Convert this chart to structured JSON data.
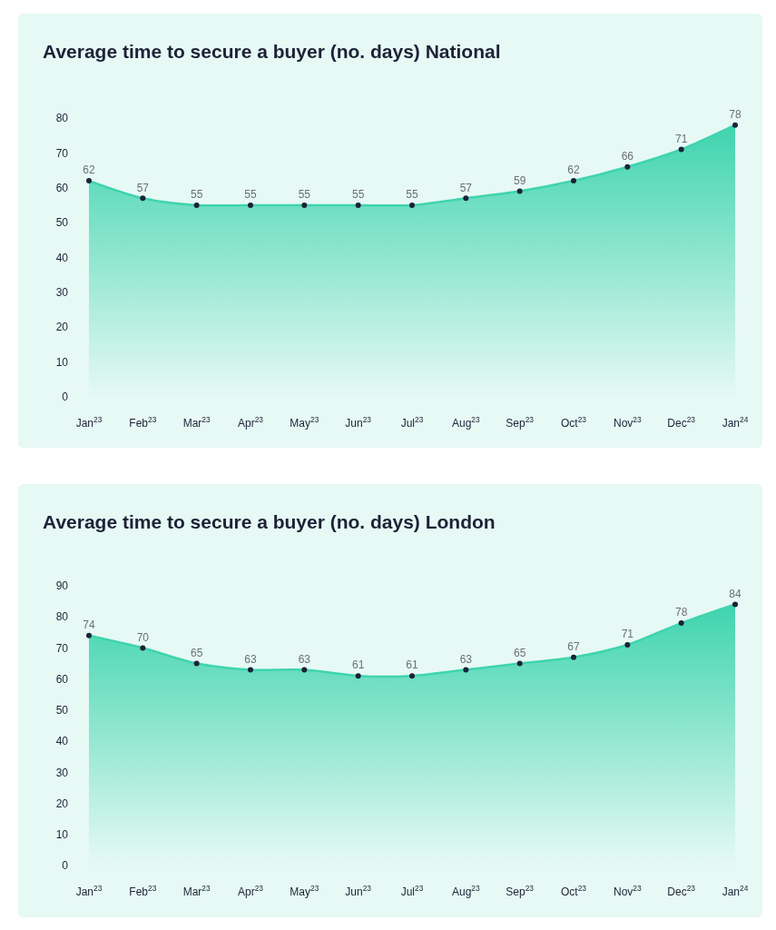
{
  "chart_data": [
    {
      "type": "area",
      "title": "Average time to secure a buyer (no. days) National",
      "categories": [
        "Jan$^{23}$",
        "Feb$^{23}$",
        "Mar$^{23}$",
        "Apr$^{23}$",
        "May$^{23}$",
        "Jun$^{23}$",
        "Jul$^{23}$",
        "Aug$^{23}$",
        "Sep$^{23}$",
        "Oct$^{23}$",
        "Nov$^{23}$",
        "Dec$^{23}$",
        "Jan$^{24}$"
      ],
      "values": [
        62,
        57,
        55,
        55,
        55,
        55,
        55,
        57,
        59,
        62,
        66,
        71,
        78
      ],
      "color": "#3fd4ae",
      "ylim": [
        0,
        80
      ],
      "yticks": [
        0,
        10,
        20,
        30,
        40,
        50,
        60,
        70,
        80
      ],
      "grid": false,
      "data_labels": true,
      "marker": "circle",
      "line_style": "solid"
    },
    {
      "type": "area",
      "title": "Average time to secure a buyer (no. days) London",
      "categories": [
        "Jan$^{23}$",
        "Feb$^{23}$",
        "Mar$^{23}$",
        "Apr$^{23}$",
        "May$^{23}$",
        "Jun$^{23}$",
        "Jul$^{23}$",
        "Aug$^{23}$",
        "Sep$^{23}$",
        "Oct$^{23}$",
        "Nov$^{23}$",
        "Dec$^{23}$",
        "Jan$^{24}$"
      ],
      "values": [
        74,
        70,
        65,
        63,
        63,
        61,
        61,
        63,
        65,
        67,
        71,
        78,
        84
      ],
      "color": "#3fd4ae",
      "ylim": [
        0,
        90
      ],
      "yticks": [
        0,
        10,
        20,
        30,
        40,
        50,
        60,
        70,
        80,
        90
      ],
      "grid": false,
      "data_labels": true,
      "marker": "circle",
      "line_style": "solid"
    }
  ]
}
